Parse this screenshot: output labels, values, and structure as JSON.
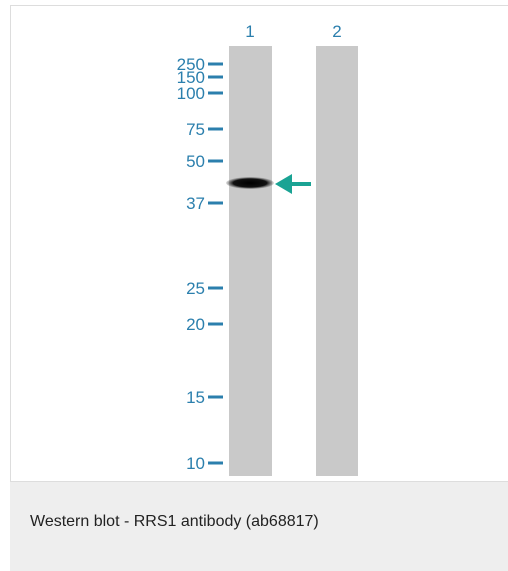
{
  "lanes": [
    "1",
    "2"
  ],
  "markers": [
    "250",
    "150",
    "100",
    "75",
    "50",
    "37",
    "25",
    "20",
    "15",
    "10"
  ],
  "caption": "Western blot - RRS1 antibody (ab68817)"
}
